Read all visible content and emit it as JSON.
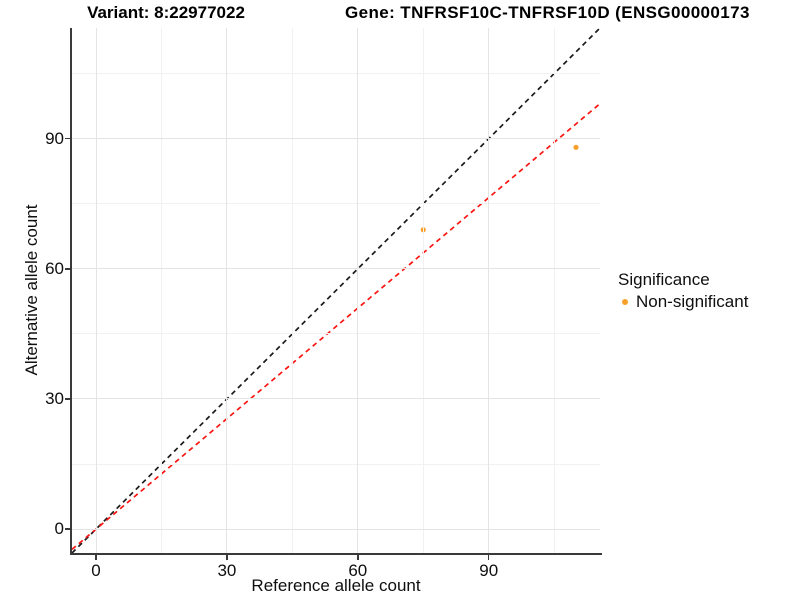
{
  "titles": {
    "variant": "Variant: 8:22977022",
    "gene": "Gene: TNFRSF10C-TNFRSF10D (ENSG00000173"
  },
  "chart_data": {
    "type": "scatter",
    "xlabel": "Reference allele count",
    "ylabel": "Alternative allele count",
    "xlim": [
      -5.5,
      115.5
    ],
    "ylim": [
      -5.5,
      115.5
    ],
    "x_major_ticks": [
      0,
      30,
      60,
      90
    ],
    "y_major_ticks": [
      0,
      30,
      60,
      90
    ],
    "x_minor_ticks": [
      15,
      45,
      75,
      105
    ],
    "y_minor_ticks": [
      15,
      45,
      75,
      105
    ],
    "grid": "major+minor gridlines, white background",
    "points": [
      {
        "x": 75,
        "y": 69,
        "series": "Non-significant"
      },
      {
        "x": 110,
        "y": 88,
        "series": "Non-significant"
      }
    ],
    "point_color": "#F9A12B",
    "point_radius_px": 2.6,
    "lines": [
      {
        "name": "identity-line",
        "slope": 1,
        "intercept": 0,
        "color": "#1a1a1a",
        "style": "dashed"
      },
      {
        "name": "ratio-line",
        "slope": 0.849,
        "intercept": 0,
        "color": "#FB1511",
        "style": "dashed"
      }
    ],
    "legend": {
      "title": "Significance",
      "position": "right",
      "items": [
        {
          "label": "Non-significant",
          "color": "#F9A12B"
        }
      ]
    }
  },
  "style_colors": {
    "grid_major": "#e4e4e4",
    "grid_minor": "#f1f1f1",
    "axis_line": "#3a3a3a"
  }
}
